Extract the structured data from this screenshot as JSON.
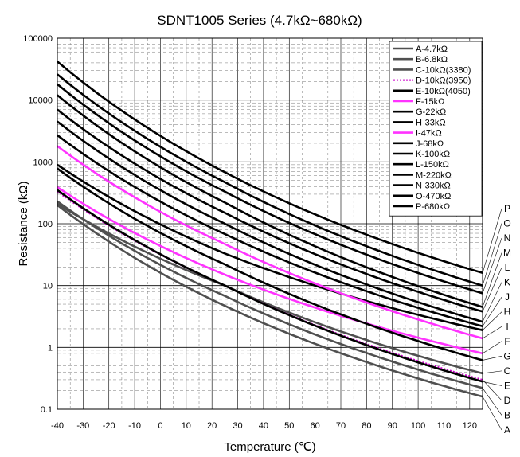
{
  "chart_data": {
    "type": "line",
    "title": "SDNT1005 Series (4.7kΩ~680kΩ)",
    "xlabel": "Temperature (℃)",
    "ylabel": "Resistance (kΩ)",
    "x_scale": "linear",
    "y_scale": "log",
    "xlim": [
      -40,
      125
    ],
    "ylim": [
      0.1,
      100000
    ],
    "x_ticks": [
      "-40",
      "-30",
      "-20",
      "-10",
      "0",
      "10",
      "20",
      "30",
      "40",
      "50",
      "60",
      "70",
      "80",
      "90",
      "100",
      "110",
      "120"
    ],
    "y_ticks": [
      "100000",
      "10000",
      "1000",
      "100",
      "10",
      "1",
      "0.1"
    ],
    "grid": true,
    "legend_position": "top-right",
    "x": [
      -40,
      25,
      125
    ],
    "series": [
      {
        "id": "A",
        "name": "A-4.7kΩ",
        "values": [
          200,
          4.7,
          0.16
        ],
        "color": "#505050",
        "style": "solid"
      },
      {
        "id": "B",
        "name": "B-6.8kΩ",
        "values": [
          230,
          6.8,
          0.22
        ],
        "color": "#505050",
        "style": "solid"
      },
      {
        "id": "C",
        "name": "C-10kΩ(3380)",
        "values": [
          210,
          10,
          0.38
        ],
        "color": "#505050",
        "style": "solid"
      },
      {
        "id": "D",
        "name": "D-10kΩ(3950)",
        "values": [
          330,
          10,
          0.3
        ],
        "color": "#cc00cc",
        "style": "dotted"
      },
      {
        "id": "E",
        "name": "E-10kΩ(4050)",
        "values": [
          350,
          10,
          0.28
        ],
        "color": "#000000",
        "style": "solid"
      },
      {
        "id": "F",
        "name": "F-15kΩ",
        "values": [
          390,
          15,
          0.8
        ],
        "color": "#ff33ff",
        "style": "solid"
      },
      {
        "id": "G",
        "name": "G-22kΩ",
        "values": [
          780,
          22,
          0.62
        ],
        "color": "#000000",
        "style": "solid"
      },
      {
        "id": "H",
        "name": "H-33kΩ",
        "values": [
          900,
          33,
          1.9
        ],
        "color": "#000000",
        "style": "solid"
      },
      {
        "id": "I",
        "name": "I-47kΩ",
        "values": [
          1800,
          47,
          1.4
        ],
        "color": "#ff33ff",
        "style": "solid"
      },
      {
        "id": "J",
        "name": "J-68kΩ",
        "values": [
          2700,
          68,
          2.2
        ],
        "color": "#000000",
        "style": "solid"
      },
      {
        "id": "K",
        "name": "K-100kΩ",
        "values": [
          4500,
          100,
          2.6
        ],
        "color": "#000000",
        "style": "solid"
      },
      {
        "id": "L",
        "name": "L-150kΩ",
        "values": [
          7000,
          150,
          3.8
        ],
        "color": "#000000",
        "style": "solid"
      },
      {
        "id": "M",
        "name": "M-220kΩ",
        "values": [
          12000,
          220,
          4.5
        ],
        "color": "#000000",
        "style": "solid"
      },
      {
        "id": "N",
        "name": "N-330kΩ",
        "values": [
          18000,
          330,
          7.5
        ],
        "color": "#000000",
        "style": "solid"
      },
      {
        "id": "O",
        "name": "O-470kΩ",
        "values": [
          26000,
          470,
          10
        ],
        "color": "#000000",
        "style": "solid"
      },
      {
        "id": "P",
        "name": "P-680kΩ",
        "values": [
          42000,
          680,
          16
        ],
        "color": "#000000",
        "style": "solid"
      }
    ],
    "curve_label_order": [
      "P",
      "O",
      "N",
      "M",
      "L",
      "K",
      "J",
      "H",
      "I",
      "F",
      "G",
      "C",
      "E",
      "D",
      "B",
      "A"
    ]
  }
}
